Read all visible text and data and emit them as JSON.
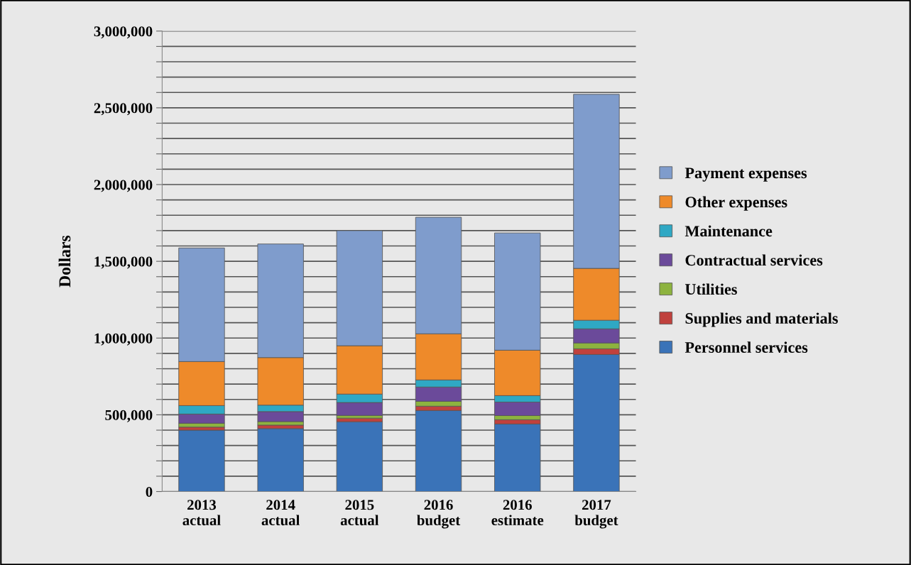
{
  "chart_data": {
    "type": "bar",
    "stacked": true,
    "ylabel": "Dollars",
    "categories": [
      "2013\nactual",
      "2014\nactual",
      "2015\nactual",
      "2016\nbudget",
      "2016\nestimate",
      "2017\nbudget"
    ],
    "series": [
      {
        "name": "Personnel services",
        "color": "#3a73b8",
        "values": [
          400000,
          410000,
          455000,
          528000,
          440000,
          893000
        ]
      },
      {
        "name": "Supplies and materials",
        "color": "#c0413d",
        "values": [
          20000,
          23000,
          23000,
          28000,
          28000,
          37000
        ]
      },
      {
        "name": "Utilities",
        "color": "#8db33f",
        "values": [
          25000,
          23000,
          18000,
          32000,
          27000,
          38000
        ]
      },
      {
        "name": "Contractual services",
        "color": "#6b4a9a",
        "values": [
          60000,
          65000,
          84000,
          93000,
          88000,
          92000
        ]
      },
      {
        "name": "Maintenance",
        "color": "#2fa8c4",
        "values": [
          55000,
          42000,
          55000,
          46000,
          42000,
          56000
        ]
      },
      {
        "name": "Other expenses",
        "color": "#ee8a2a",
        "values": [
          287000,
          310000,
          315000,
          301000,
          296000,
          338000
        ]
      },
      {
        "name": "Payment expenses",
        "color": "#7f9ccc",
        "values": [
          740000,
          740000,
          750000,
          759000,
          764000,
          1134000
        ]
      }
    ],
    "ylim": [
      0,
      3000000
    ],
    "yticks": [
      {
        "value": 0,
        "label": "0"
      },
      {
        "value": 100000,
        "label": null
      },
      {
        "value": 200000,
        "label": null
      },
      {
        "value": 300000,
        "label": null
      },
      {
        "value": 400000,
        "label": null
      },
      {
        "value": 500000,
        "label": "500,000"
      },
      {
        "value": 600000,
        "label": null
      },
      {
        "value": 700000,
        "label": null
      },
      {
        "value": 800000,
        "label": null
      },
      {
        "value": 900000,
        "label": null
      },
      {
        "value": 1000000,
        "label": "1,000,000"
      },
      {
        "value": 1100000,
        "label": null
      },
      {
        "value": 1200000,
        "label": null
      },
      {
        "value": 1300000,
        "label": null
      },
      {
        "value": 1400000,
        "label": null
      },
      {
        "value": 1500000,
        "label": "1,500,000"
      },
      {
        "value": 1600000,
        "label": null
      },
      {
        "value": 1700000,
        "label": null
      },
      {
        "value": 1800000,
        "label": null
      },
      {
        "value": 1900000,
        "label": null
      },
      {
        "value": 2000000,
        "label": "2,000,000"
      },
      {
        "value": 2100000,
        "label": null
      },
      {
        "value": 2200000,
        "label": null
      },
      {
        "value": 2300000,
        "label": null
      },
      {
        "value": 2400000,
        "label": null
      },
      {
        "value": 2500000,
        "label": "2,500,000"
      },
      {
        "value": 2600000,
        "label": null
      },
      {
        "value": 2700000,
        "label": null
      },
      {
        "value": 2800000,
        "label": null
      },
      {
        "value": 2900000,
        "label": null
      },
      {
        "value": 3000000,
        "label": "3,000,000"
      }
    ],
    "grid": "y",
    "legend": "right"
  }
}
